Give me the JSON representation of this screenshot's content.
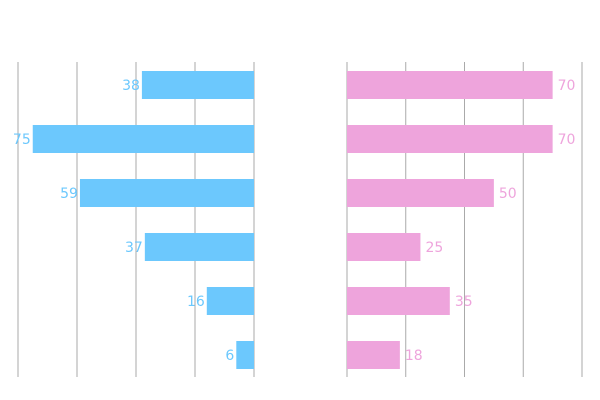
{
  "chart_data": {
    "type": "bar",
    "orientation": "horizontal-butterfly",
    "categories": [
      "",
      "",
      "",
      "",
      "",
      ""
    ],
    "series": [
      {
        "side": "left",
        "color": "#6cc8fd",
        "values": [
          38,
          75,
          59,
          37,
          16,
          6
        ]
      },
      {
        "side": "right",
        "color": "#eea4dc",
        "values": [
          70,
          70,
          50,
          25,
          35,
          18
        ]
      }
    ],
    "left_xlim": [
      0,
      80
    ],
    "right_xlim": [
      0,
      80
    ],
    "grid": true,
    "legend": "none",
    "title": "",
    "xlabel": "",
    "ylabel": ""
  }
}
